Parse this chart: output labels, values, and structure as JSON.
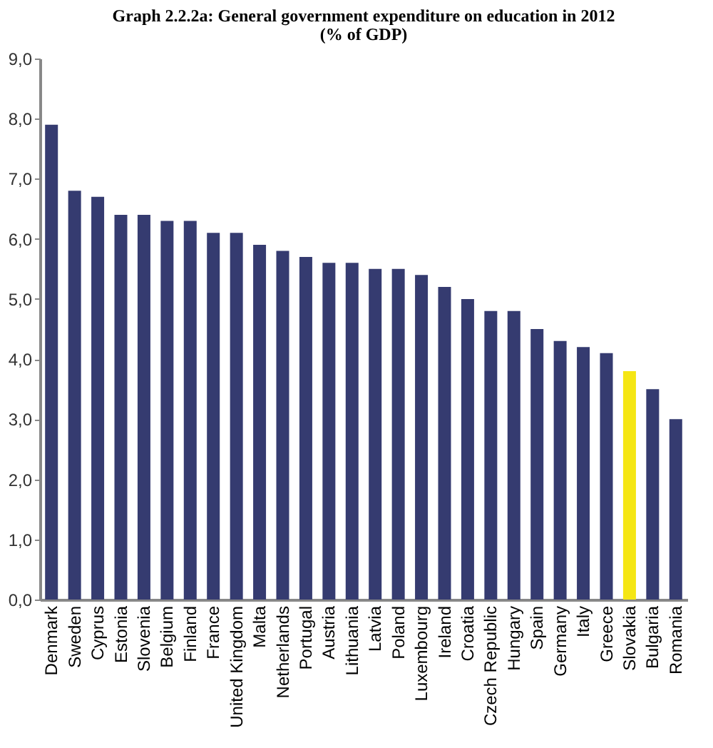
{
  "chart_data": {
    "type": "bar",
    "title": "Graph 2.2.2a: General government expenditure on education in 2012",
    "subtitle": "(% of GDP)",
    "categories": [
      "Denmark",
      "Sweden",
      "Cyprus",
      "Estonia",
      "Slovenia",
      "Belgium",
      "Finland",
      "France",
      "United Kingdom",
      "Malta",
      "Netherlands",
      "Portugal",
      "Austria",
      "Lithuania",
      "Latvia",
      "Poland",
      "Luxembourg",
      "Ireland",
      "Croatia",
      "Czech Republic",
      "Hungary",
      "Spain",
      "Germany",
      "Italy",
      "Greece",
      "Slovakia",
      "Bulgaria",
      "Romania"
    ],
    "values": [
      7.9,
      6.8,
      6.7,
      6.4,
      6.4,
      6.3,
      6.3,
      6.1,
      6.1,
      5.9,
      5.8,
      5.7,
      5.6,
      5.6,
      5.5,
      5.5,
      5.4,
      5.2,
      5.0,
      4.8,
      4.8,
      4.5,
      4.3,
      4.2,
      4.1,
      3.8,
      3.5,
      3.0
    ],
    "colors": [
      "#353b70",
      "#353b70",
      "#353b70",
      "#353b70",
      "#353b70",
      "#353b70",
      "#353b70",
      "#353b70",
      "#353b70",
      "#353b70",
      "#353b70",
      "#353b70",
      "#353b70",
      "#353b70",
      "#353b70",
      "#353b70",
      "#353b70",
      "#353b70",
      "#353b70",
      "#353b70",
      "#353b70",
      "#353b70",
      "#353b70",
      "#353b70",
      "#353b70",
      "#f5e614",
      "#353b70",
      "#353b70"
    ],
    "ylim": [
      0,
      9
    ],
    "yticks": [
      {
        "value": 0,
        "label": "0,0"
      },
      {
        "value": 1,
        "label": "1,0"
      },
      {
        "value": 2,
        "label": "2,0"
      },
      {
        "value": 3,
        "label": "3,0"
      },
      {
        "value": 4,
        "label": "4,0"
      },
      {
        "value": 5,
        "label": "5,0"
      },
      {
        "value": 6,
        "label": "6,0"
      },
      {
        "value": 7,
        "label": "7,0"
      },
      {
        "value": 8,
        "label": "8,0"
      },
      {
        "value": 9,
        "label": "9,0"
      }
    ],
    "grid": false
  }
}
